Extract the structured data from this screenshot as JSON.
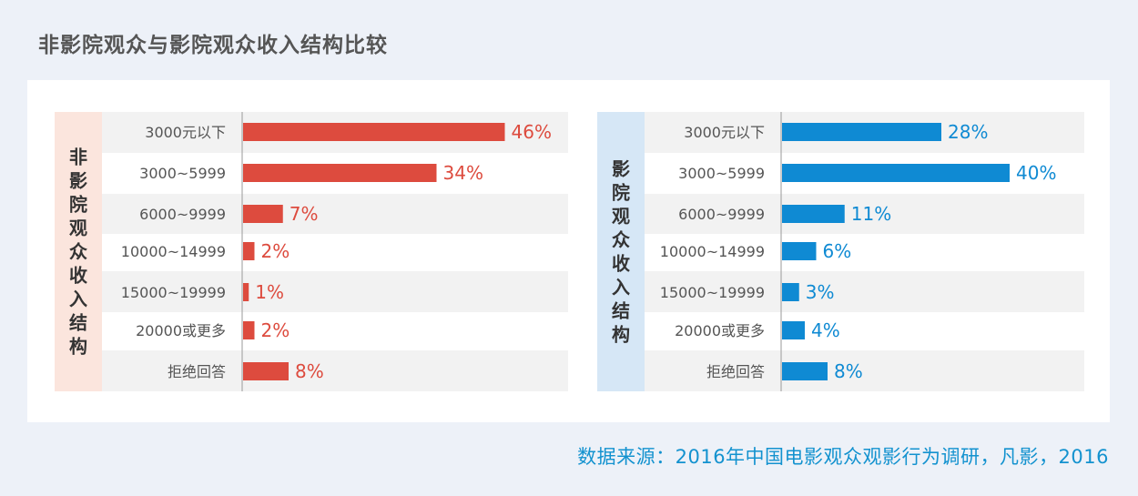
{
  "page_title": "非影院观众与影院观众收入结构比较",
  "source": "数据来源：2016年中国电影观众观影行为调研，凡影，2016",
  "chart_data": [
    {
      "type": "bar",
      "orientation": "horizontal",
      "side_label": "非影院观众收入结构",
      "side_label_bg": "#fbe5dd",
      "bar_color": "#dd4b3e",
      "value_color": "#dd4b3e",
      "value_suffix": "%",
      "categories": [
        "3000元以下",
        "3000~5999",
        "6000~9999",
        "10000~14999",
        "15000~19999",
        "20000或更多",
        "拒绝回答"
      ],
      "values": [
        46,
        34,
        7,
        2,
        1,
        2,
        8
      ],
      "xlim": [
        0,
        46
      ],
      "grid": false
    },
    {
      "type": "bar",
      "orientation": "horizontal",
      "side_label": "影院观众收入结构",
      "side_label_bg": "#d6e7f6",
      "bar_color": "#0f8ad3",
      "value_color": "#0f8ad3",
      "value_suffix": "%",
      "categories": [
        "3000元以下",
        "3000~5999",
        "6000~9999",
        "10000~14999",
        "15000~19999",
        "20000或更多",
        "拒绝回答"
      ],
      "values": [
        28,
        40,
        11,
        6,
        3,
        4,
        8
      ],
      "xlim": [
        0,
        46
      ],
      "grid": false
    }
  ]
}
